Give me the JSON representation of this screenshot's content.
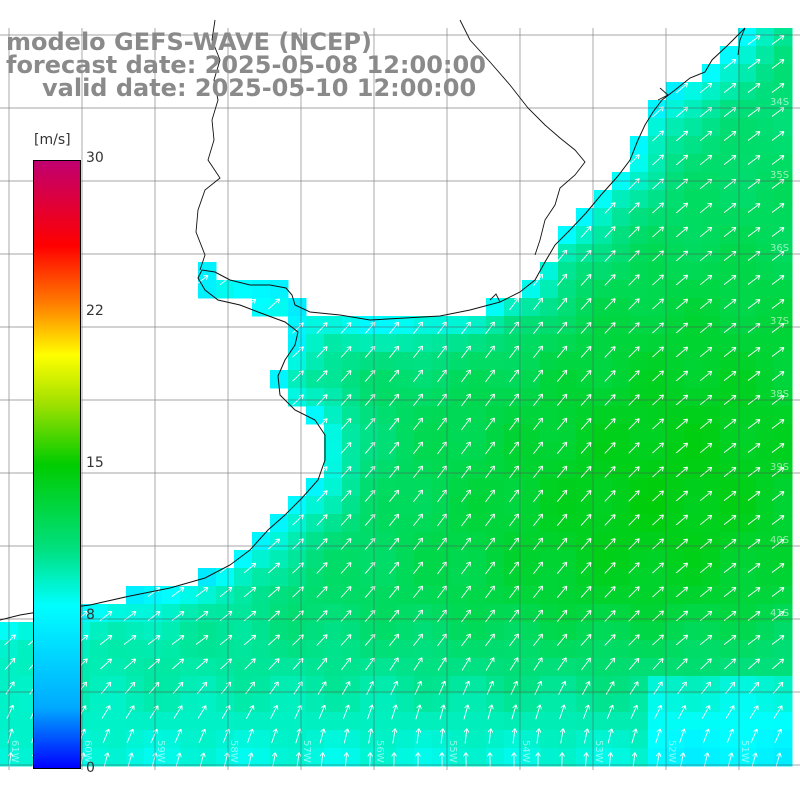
{
  "title": {
    "model": "modelo GEFS-WAVE (NCEP)",
    "forecast": "forecast date: 2025-05-08 12:00:00",
    "valid": "valid date: 2025-05-10 12:00:00"
  },
  "colorbar": {
    "unit": "[m/s]",
    "min": 0,
    "max": 30,
    "tick_labels": [
      "30",
      "22",
      "15",
      "8",
      "0"
    ],
    "tick_values": [
      30,
      22,
      15,
      8,
      0
    ],
    "colors": [
      "#0000ff",
      "#00aaff",
      "#00ffff",
      "#00e080",
      "#00cc00",
      "#a0e000",
      "#ffff00",
      "#ff8000",
      "#ff0000",
      "#c00070"
    ]
  },
  "map": {
    "lon_range": [
      -62,
      -51
    ],
    "lat_range": [
      -42,
      -31.5
    ],
    "lon_labels": [
      "61W",
      "60W",
      "59W",
      "58W",
      "57W",
      "56W",
      "55W",
      "54W",
      "53W",
      "52W",
      "51W"
    ],
    "lat_labels": [
      "34S",
      "35S",
      "36S",
      "37S",
      "38S",
      "39S",
      "40S",
      "41S"
    ],
    "land_color": "#ffffff",
    "grid": true,
    "arrow_color": "#ffffff"
  }
}
